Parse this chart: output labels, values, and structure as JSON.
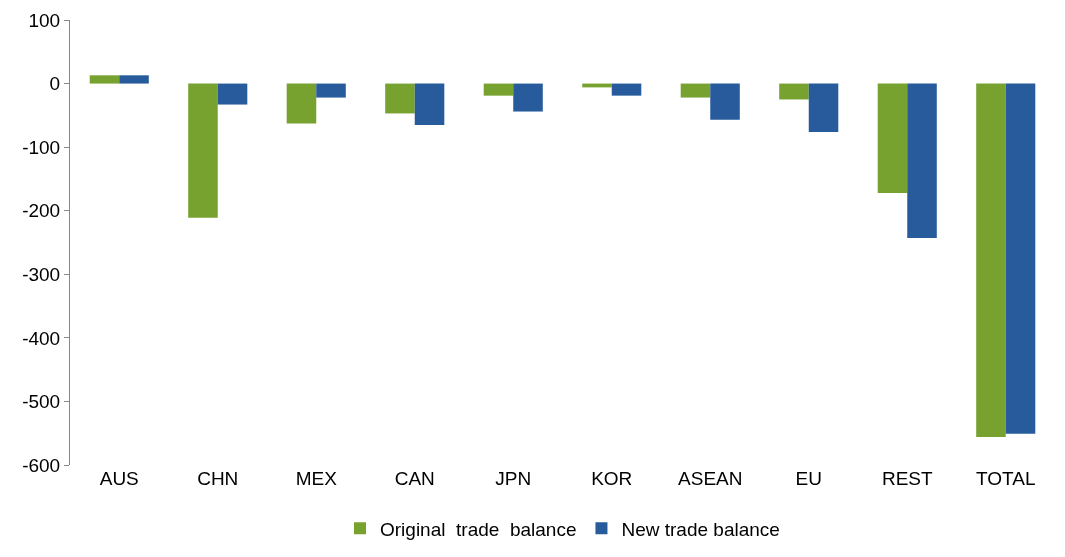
{
  "chart_data": {
    "type": "bar",
    "categories": [
      "AUS",
      "CHN",
      "MEX",
      "CAN",
      "JPN",
      "KOR",
      "ASEAN",
      "EU",
      "REST",
      "TOTAL"
    ],
    "series": [
      {
        "name": "Original  trade  balance",
        "color": "#77a22f",
        "values": [
          13,
          -211,
          -63,
          -47,
          -19,
          -6,
          -22,
          -25,
          -172,
          -556
        ]
      },
      {
        "name": "New trade balance",
        "color": "#275b9b",
        "values": [
          13,
          -33,
          -22,
          -65,
          -44,
          -19,
          -57,
          -76,
          -243,
          -551
        ]
      }
    ],
    "ylim": [
      -600,
      100
    ],
    "yticks": [
      -600,
      -500,
      -400,
      -300,
      -200,
      -100,
      0,
      100
    ],
    "legend": "bottom"
  }
}
